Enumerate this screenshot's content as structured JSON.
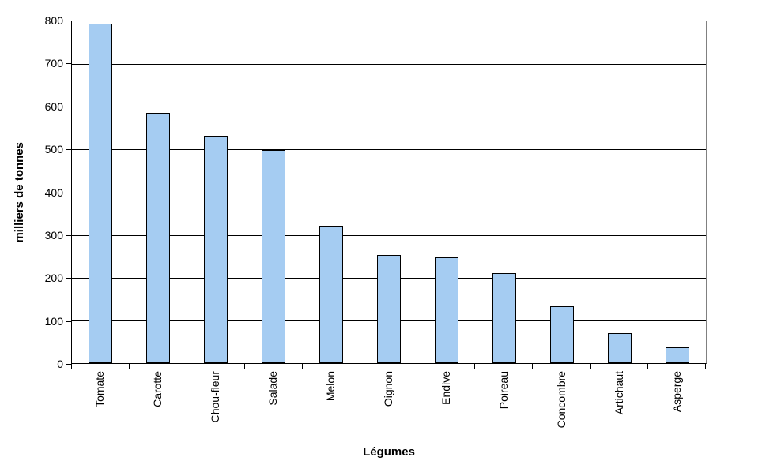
{
  "chart_data": {
    "type": "bar",
    "title": "",
    "xlabel": "Légumes",
    "ylabel": "milliers de tonnes",
    "categories": [
      "Tomate",
      "Carotte",
      "Chou-fleur",
      "Salade",
      "Melon",
      "Oignon",
      "Endive",
      "Poireau",
      "Concombre",
      "Artichaut",
      "Asperge"
    ],
    "values": [
      795,
      585,
      532,
      498,
      322,
      254,
      247,
      210,
      133,
      70,
      37
    ],
    "ylim": [
      0,
      800
    ],
    "ytick_interval": 100,
    "yticks": [
      0,
      100,
      200,
      300,
      400,
      500,
      600,
      700,
      800
    ],
    "grid": "horizontal",
    "legend": "none",
    "colors": {
      "bar_fill": "#A5CCF2",
      "bar_border": "#000000",
      "gridline": "#000000",
      "plot_border": "#808080",
      "axis": "#000000",
      "background": "#FFFFFF",
      "text": "#000000"
    }
  }
}
